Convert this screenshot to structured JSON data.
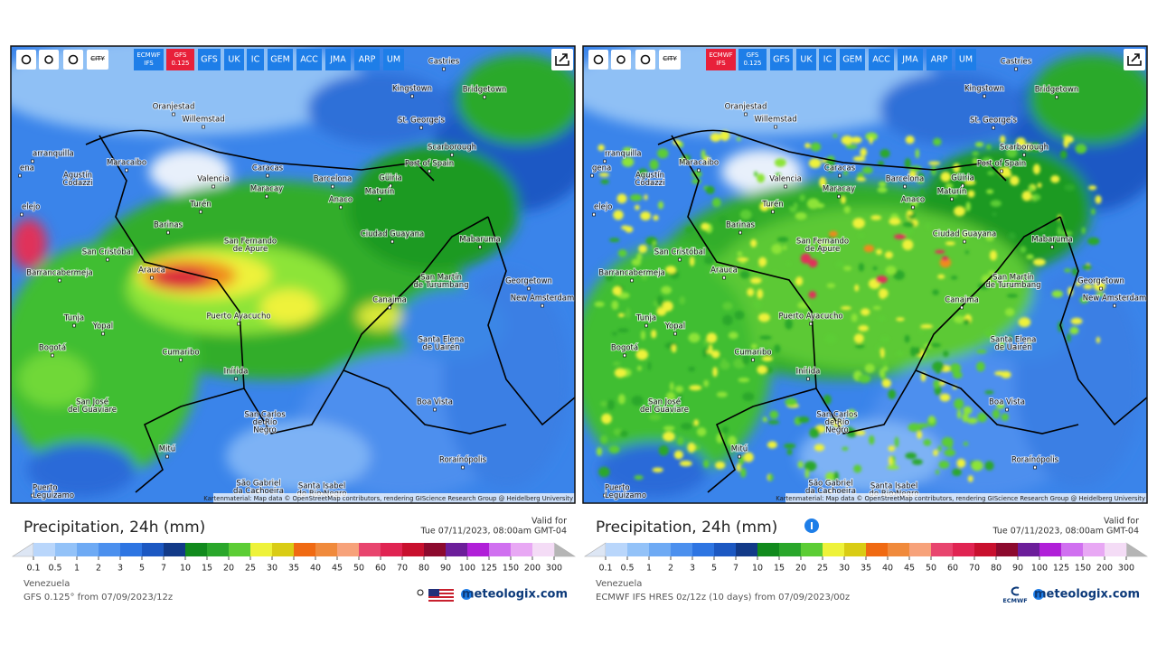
{
  "panels": [
    {
      "toolbar": {
        "city": "CITY",
        "active": 1,
        "buttons": [
          [
            "ECMWF",
            "IFS"
          ],
          [
            "GFS",
            "0.125"
          ],
          [
            "GFS"
          ],
          [
            "UK"
          ],
          [
            "IC"
          ],
          [
            "GEM"
          ],
          [
            "ACC"
          ],
          [
            "JMA"
          ],
          [
            "ARP"
          ],
          [
            "UM"
          ]
        ]
      },
      "cities": [
        [
          "Castries"
        ],
        [
          "Kingstown"
        ],
        [
          "Bridgetown"
        ],
        [
          "Oranjestad"
        ],
        [
          "Willemstad"
        ],
        [
          "St. George's"
        ],
        [
          "Scarborough"
        ],
        [
          "arranquilla"
        ],
        [
          "Maracaibo"
        ],
        [
          "Port of Spain"
        ],
        [
          "Caracas"
        ],
        [
          "Agustín",
          "Codazzi"
        ],
        [
          "Valencia"
        ],
        [
          "Barcelona"
        ],
        [
          "Güiria"
        ],
        [
          "Maracay"
        ],
        [
          "Maturín"
        ],
        [
          "Anaco"
        ],
        [
          "Turén"
        ],
        [
          "elejo"
        ],
        [
          "Barinas"
        ],
        [
          "Ciudad Guayana"
        ],
        [
          "Mabaruma"
        ],
        [
          "San Fernando",
          "de Apure"
        ],
        [
          "San Cristóbal"
        ],
        [
          "Arauca"
        ],
        [
          "Barrancabermeja"
        ],
        [
          "San Martín",
          "de Turumbang"
        ],
        [
          "Georgetown"
        ],
        [
          "Canaima"
        ],
        [
          "New Amsterdam"
        ],
        [
          "Puerto Ayacucho"
        ],
        [
          "Tunja"
        ],
        [
          "Yopal"
        ],
        [
          "Santa Elena",
          "de Uairén"
        ],
        [
          "Bogotá"
        ],
        [
          "Cumaribo"
        ],
        [
          "Inírida"
        ],
        [
          "Boa Vista"
        ],
        [
          "San José",
          "del Guaviare"
        ],
        [
          "San Carlos",
          "de Río",
          "Negro"
        ],
        [
          "Mitú"
        ],
        [
          "Roraínópolis"
        ],
        [
          "São Gabriel",
          "da Cachoeira"
        ],
        [
          "Santa Isabel",
          "do Rio Negro"
        ],
        [
          "Puerto",
          "Leguízamo"
        ],
        [
          "ena"
        ]
      ],
      "attribution": "Kartenmaterial: Map data © OpenStreetMap contributors, rendering GIScience Research Group @ Heidelberg University",
      "legend": {
        "title": "Precipitation, 24h (mm)",
        "valid_label": "Valid for",
        "valid_time": "Tue 07/11/2023, 08:00am GMT-04"
      },
      "footer": {
        "region": "Venezuela",
        "model": "GFS 0.125° from 07/09/2023/12z",
        "logo": "meteologix.com"
      }
    },
    {
      "toolbar": {
        "city": "CITY",
        "active": 0,
        "buttons": [
          [
            "ECMWF",
            "IFS"
          ],
          [
            "GFS",
            "0.125"
          ],
          [
            "GFS"
          ],
          [
            "UK"
          ],
          [
            "IC"
          ],
          [
            "GEM"
          ],
          [
            "ACC"
          ],
          [
            "JMA"
          ],
          [
            "ARP"
          ],
          [
            "UM"
          ]
        ]
      },
      "cities": [
        [
          "Castries"
        ],
        [
          "Kingstown"
        ],
        [
          "Bridgetown"
        ],
        [
          "Oranjestad"
        ],
        [
          "Willemstad"
        ],
        [
          "St. George's"
        ],
        [
          "Scarborough"
        ],
        [
          "rranquilla"
        ],
        [
          "Maracaibo"
        ],
        [
          "Port of Spain"
        ],
        [
          "Caracas"
        ],
        [
          "Agustín",
          "Codazzi"
        ],
        [
          "Valencia"
        ],
        [
          "Barcelona"
        ],
        [
          "Güiria"
        ],
        [
          "Maracay"
        ],
        [
          "Maturín"
        ],
        [
          "Anaco"
        ],
        [
          "Turén"
        ],
        [
          "elejo"
        ],
        [
          "Barinas"
        ],
        [
          "Ciudad Guayana"
        ],
        [
          "Mabaruma"
        ],
        [
          "San Fernando",
          "de Apure"
        ],
        [
          "San Cristóbal"
        ],
        [
          "Arauca"
        ],
        [
          "Barrancabermeja"
        ],
        [
          "San Martín",
          "de Turumbang"
        ],
        [
          "Georgetown"
        ],
        [
          "Canaima"
        ],
        [
          "New Amsterdam"
        ],
        [
          "Puerto Ayacucho"
        ],
        [
          "Tunja"
        ],
        [
          "Yopal"
        ],
        [
          "Santa Elena",
          "de Uairén"
        ],
        [
          "Bogotá"
        ],
        [
          "Cumaribo"
        ],
        [
          "Inírida"
        ],
        [
          "Boa Vista"
        ],
        [
          "San José",
          "del Guaviare"
        ],
        [
          "San Carlos",
          "de Río",
          "Negro"
        ],
        [
          "Mitú"
        ],
        [
          "Roraínópolis"
        ],
        [
          "São Gabriel",
          "da Cachoeira"
        ],
        [
          "Santa Isabel",
          "do Rio Negro"
        ],
        [
          "Puerto",
          "Leguízamo"
        ],
        [
          "gena"
        ]
      ],
      "attribution": "Kartenmaterial: Map data © OpenStreetMap contributors, rendering GIScience Research Group @ Heidelberg University",
      "legend": {
        "title": "Precipitation, 24h (mm)",
        "valid_label": "Valid for",
        "valid_time": "Tue 07/11/2023, 08:00am GMT-04"
      },
      "footer": {
        "region": "Venezuela",
        "model": "ECMWF IFS HRES 0z/12z (10 days) from 07/09/2023/00z",
        "logo": "meteologix.com",
        "badge": "ECMWF"
      }
    }
  ],
  "scale": {
    "ticks": [
      0.1,
      0.5,
      1,
      2,
      3,
      5,
      7,
      10,
      15,
      20,
      25,
      30,
      35,
      40,
      45,
      50,
      60,
      70,
      80,
      90,
      100,
      125,
      150,
      200,
      300
    ],
    "colors": [
      "#b9d6fb",
      "#93c2f8",
      "#6eaaf4",
      "#4c90ee",
      "#2e75e2",
      "#1c58c2",
      "#123a88",
      "#118a1d",
      "#2aa72b",
      "#5ccd35",
      "#eef23a",
      "#d9cc14",
      "#f06a12",
      "#f08a3c",
      "#f7a27a",
      "#e8456e",
      "#e02452",
      "#c8102e",
      "#8c0a2e",
      "#6c1e9a",
      "#b020d8",
      "#d070f0",
      "#e8a8f4",
      "#f4dcf6"
    ]
  }
}
